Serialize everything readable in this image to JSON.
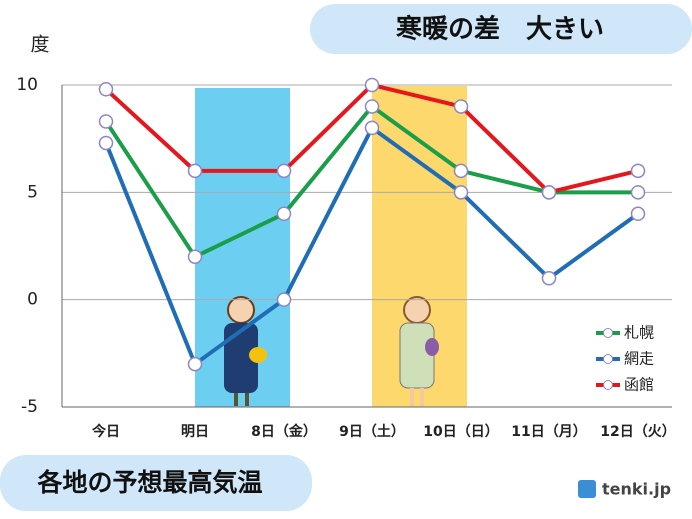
{
  "chart_data": {
    "type": "line",
    "title": "寒暖の差　大きい",
    "subtitle": "各地の予想最高気温",
    "y_label": "度",
    "source": "tenki.jp",
    "categories": [
      "今日",
      "明日",
      "8日（金）",
      "9日（土）",
      "10日（日）",
      "11日（月）",
      "12日（火）"
    ],
    "series": [
      {
        "name": "札幌",
        "color": "#1a9e4a",
        "values": [
          8.3,
          2,
          4,
          9,
          6,
          5,
          5
        ]
      },
      {
        "name": "網走",
        "color": "#1f6db5",
        "values": [
          7.3,
          -3,
          0,
          8,
          5,
          1,
          4
        ]
      },
      {
        "name": "函館",
        "color": "#e5171d",
        "values": [
          9.8,
          6,
          6,
          10,
          9,
          5,
          6
        ]
      }
    ],
    "ylim": [
      -5,
      10
    ],
    "yticks": [
      -5,
      0,
      5,
      10
    ],
    "grid": true,
    "legend": "lower right"
  }
}
